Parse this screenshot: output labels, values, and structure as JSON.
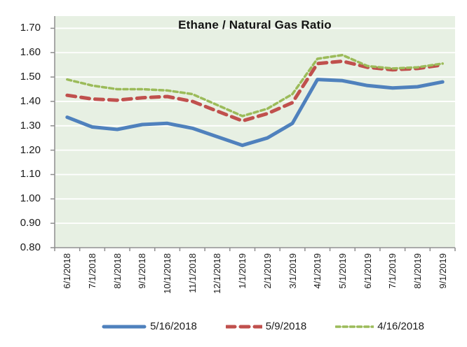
{
  "chart_data": {
    "type": "line",
    "title": "Ethane / Natural Gas Ratio",
    "categories": [
      "6/1/2018",
      "7/1/2018",
      "8/1/2018",
      "9/1/2018",
      "10/1/2018",
      "11/1/2018",
      "12/1/2018",
      "1/1/2019",
      "2/1/2019",
      "3/1/2019",
      "4/1/2019",
      "5/1/2019",
      "6/1/2019",
      "7/1/2019",
      "8/1/2019",
      "9/1/2019"
    ],
    "series": [
      {
        "name": "5/16/2018",
        "color": "#4F81BD",
        "line_style": "solid",
        "line_width": 5,
        "values": [
          1.335,
          1.295,
          1.285,
          1.305,
          1.31,
          1.29,
          1.255,
          1.22,
          1.25,
          1.31,
          1.49,
          1.485,
          1.465,
          1.455,
          1.46,
          1.48
        ]
      },
      {
        "name": "5/9/2018",
        "color": "#C0504D",
        "line_style": "dashed",
        "line_width": 5,
        "values": [
          1.425,
          1.41,
          1.405,
          1.415,
          1.42,
          1.4,
          1.36,
          1.32,
          1.35,
          1.395,
          1.555,
          1.565,
          1.54,
          1.53,
          1.535,
          1.55
        ]
      },
      {
        "name": "4/16/2018",
        "color": "#9BBB59",
        "line_style": "dotted",
        "line_width": 3.5,
        "values": [
          1.49,
          1.465,
          1.45,
          1.45,
          1.445,
          1.43,
          1.385,
          1.34,
          1.37,
          1.43,
          1.575,
          1.59,
          1.545,
          1.535,
          1.54,
          1.555
        ]
      }
    ],
    "ylim": [
      0.8,
      1.75
    ],
    "ytick_labels": [
      "0.80",
      "0.90",
      "1.00",
      "1.10",
      "1.20",
      "1.30",
      "1.40",
      "1.50",
      "1.60",
      "1.70"
    ],
    "grid": "horizontal",
    "legend_position": "bottom",
    "colors": {
      "plot_bg": "#E7F0E3",
      "gridline": "#FFFFFF",
      "axis": "#8E8E8E",
      "text": "#1a1a1a"
    }
  }
}
